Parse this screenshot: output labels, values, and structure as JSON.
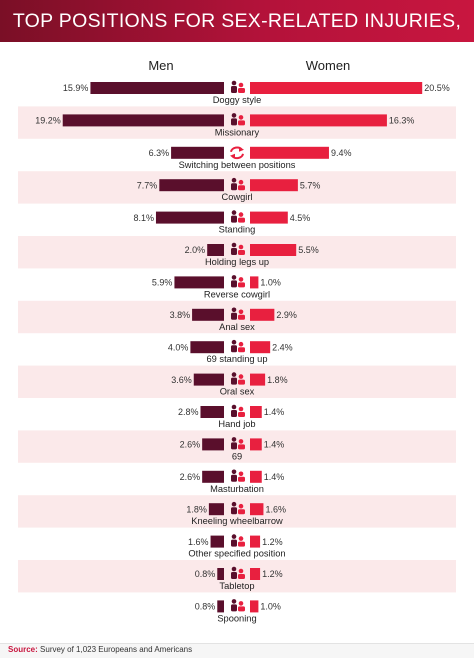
{
  "title": "TOP POSITIONS FOR SEX-RELATED INJURIES, BY GENDER",
  "source": {
    "label": "Source:",
    "text": "Survey of 1,023 Europeans and Americans"
  },
  "colors": {
    "men": "#5a0f2c",
    "women": "#e8203f",
    "band": "#fbe9ea",
    "header": "#b3123a"
  },
  "chart_data": {
    "type": "bar",
    "orientation": "horizontal",
    "layout": "diverging",
    "unit": "%",
    "legend_men": "Men",
    "legend_women": "Women",
    "categories": [
      "Doggy style",
      "Missionary",
      "Switching between positions",
      "Cowgirl",
      "Standing",
      "Holding legs up",
      "Reverse cowgirl",
      "Anal sex",
      "69 standing up",
      "Oral sex",
      "Hand job",
      "69",
      "Masturbation",
      "Kneeling wheelbarrow",
      "Other specified position",
      "Tabletop",
      "Spooning"
    ],
    "series": [
      {
        "name": "Men",
        "values": [
          15.9,
          19.2,
          6.3,
          7.7,
          8.1,
          2.0,
          5.9,
          3.8,
          4.0,
          3.6,
          2.8,
          2.6,
          2.6,
          1.8,
          1.6,
          0.8,
          0.8
        ],
        "labels": [
          "15.9%",
          "19.2%",
          "6.3%",
          "7.7%",
          "8.1%",
          "2.0%",
          "5.9%",
          "3.8%",
          "4.0%",
          "3.6%",
          "2.8%",
          "2.6%",
          "2.6%",
          "1.8%",
          "1.6%",
          "0.8%",
          "0.8%"
        ]
      },
      {
        "name": "Women",
        "values": [
          20.5,
          16.3,
          9.4,
          5.7,
          4.5,
          5.5,
          1.0,
          2.9,
          2.4,
          1.8,
          1.4,
          1.4,
          1.4,
          1.6,
          1.2,
          1.2,
          1.0
        ],
        "labels": [
          "20.5%",
          "16.3%",
          "9.4%",
          "5.7%",
          "4.5%",
          "5.5%",
          "1.0%",
          "2.9%",
          "2.4%",
          "1.8%",
          "1.4%",
          "1.4%",
          "1.4%",
          "1.6%",
          "1.2%",
          "1.2%",
          "1.0%"
        ]
      }
    ],
    "icons": [
      "doggy-style-icon",
      "missionary-icon",
      "switch-arrows-icon",
      "cowgirl-icon",
      "standing-icon",
      "holding-legs-up-icon",
      "reverse-cowgirl-icon",
      "anal-sex-icon",
      "69-standing-icon",
      "oral-sex-icon",
      "hand-job-icon",
      "69-icon",
      "masturbation-icon",
      "kneeling-wheelbarrow-icon",
      "other-position-icon",
      "tabletop-icon",
      "spooning-icon"
    ]
  }
}
